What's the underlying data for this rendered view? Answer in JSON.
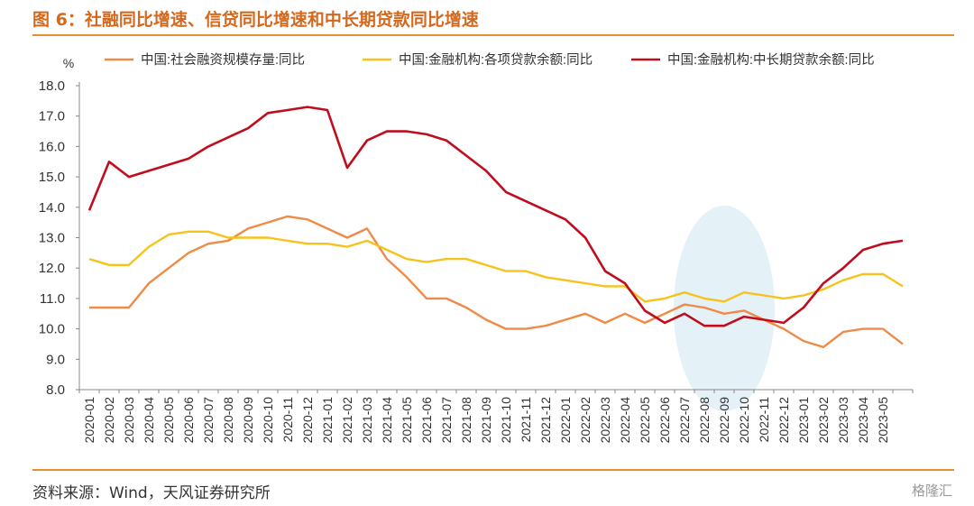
{
  "title": "图 6：社融同比增速、信贷同比增速和中长期贷款同比增速",
  "source": "资料来源：Wind，天风证券研究所",
  "watermark": "格隆汇",
  "chart_data": {
    "type": "line",
    "ylabel": "%",
    "ylim": [
      8.0,
      18.0
    ],
    "ytick_step": 1.0,
    "grid": false,
    "legend_position": "top",
    "highlight": {
      "type": "ellipse",
      "from": "2022-07",
      "to": "2022-11",
      "color": "#e4f1f7"
    },
    "x": [
      "2020-01",
      "2020-02",
      "2020-03",
      "2020-04",
      "2020-05",
      "2020-06",
      "2020-07",
      "2020-08",
      "2020-09",
      "2020-10",
      "2020-11",
      "2020-12",
      "2021-01",
      "2021-02",
      "2021-03",
      "2021-04",
      "2021-05",
      "2021-06",
      "2021-07",
      "2021-08",
      "2021-09",
      "2021-10",
      "2021-11",
      "2021-12",
      "2022-01",
      "2022-02",
      "2022-03",
      "2022-04",
      "2022-05",
      "2022-06",
      "2022-07",
      "2022-08",
      "2022-09",
      "2022-10",
      "2022-11",
      "2022-12",
      "2023-01",
      "2023-02",
      "2023-03",
      "2023-04",
      "2023-05",
      "2023-06"
    ],
    "series": [
      {
        "name": "中国:社会融资规模存量:同比",
        "color": "#ef8a47",
        "values": [
          10.7,
          10.7,
          10.7,
          11.5,
          12.0,
          12.5,
          12.8,
          12.9,
          13.3,
          13.5,
          13.7,
          13.6,
          13.3,
          13.0,
          13.3,
          12.3,
          11.7,
          11.0,
          11.0,
          10.7,
          10.3,
          10.0,
          10.0,
          10.1,
          10.3,
          10.5,
          10.2,
          10.5,
          10.2,
          10.5,
          10.8,
          10.7,
          10.5,
          10.6,
          10.3,
          10.0,
          9.6,
          9.4,
          9.9,
          10.0,
          10.0,
          9.5
        ]
      },
      {
        "name": "中国:金融机构:各项贷款余额:同比",
        "color": "#f7c21b",
        "values": [
          12.3,
          12.1,
          12.1,
          12.7,
          13.1,
          13.2,
          13.2,
          13.0,
          13.0,
          13.0,
          12.9,
          12.8,
          12.8,
          12.7,
          12.9,
          12.6,
          12.3,
          12.2,
          12.3,
          12.3,
          12.1,
          11.9,
          11.9,
          11.7,
          11.6,
          11.5,
          11.4,
          11.4,
          10.9,
          11.0,
          11.2,
          11.0,
          10.9,
          11.2,
          11.1,
          11.0,
          11.1,
          11.3,
          11.6,
          11.8,
          11.8,
          11.4
        ]
      },
      {
        "name": "中国:金融机构:中长期贷款余额:同比",
        "color": "#c00d1e",
        "values": [
          13.9,
          15.5,
          15.0,
          15.2,
          15.4,
          15.6,
          16.0,
          16.3,
          16.6,
          17.1,
          17.2,
          17.3,
          17.2,
          15.3,
          16.2,
          16.5,
          16.5,
          16.4,
          16.2,
          15.7,
          15.2,
          14.5,
          14.2,
          13.9,
          13.6,
          13.0,
          11.9,
          11.5,
          10.6,
          10.2,
          10.5,
          10.1,
          10.1,
          10.4,
          10.3,
          10.2,
          10.7,
          11.5,
          12.0,
          12.6,
          12.8,
          12.9
        ]
      }
    ]
  }
}
